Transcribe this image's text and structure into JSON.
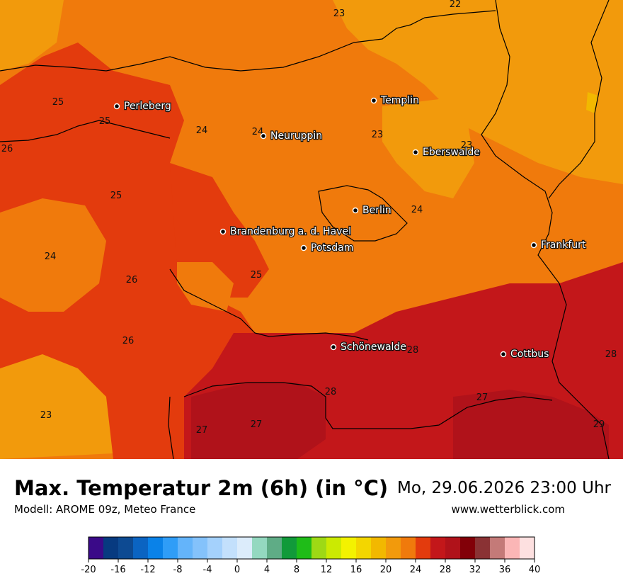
{
  "title": "Max. Temperatur 2m (6h) (in °C)",
  "subtitle": "Modell: AROME 09z, Meteo France",
  "datetime": "Mo, 29.06.2026 23:00 Uhr",
  "website": "www.wetterblick.com",
  "cities": [
    {
      "name": "Perleberg"
    },
    {
      "name": "Templin"
    },
    {
      "name": "Neuruppin"
    },
    {
      "name": "Eberswalde"
    },
    {
      "name": "Berlin"
    },
    {
      "name": "Brandenburg a. d. Havel"
    },
    {
      "name": "Potsdam"
    },
    {
      "name": "Frankfurt"
    },
    {
      "name": "Schönewalde"
    },
    {
      "name": "Cottbus"
    }
  ],
  "isoline_labels": [
    "23",
    "22",
    "25",
    "25",
    "26",
    "24",
    "24",
    "23",
    "23",
    "25",
    "24",
    "24",
    "25",
    "26",
    "26",
    "28",
    "28",
    "28",
    "27",
    "27",
    "27",
    "29",
    "23"
  ],
  "colorbar": {
    "ticks": [
      "-20",
      "-16",
      "-12",
      "-8",
      "-4",
      "0",
      "4",
      "8",
      "12",
      "16",
      "20",
      "24",
      "28",
      "32",
      "36",
      "40"
    ],
    "colors": [
      "#3a0a88",
      "#073a80",
      "#0d4a92",
      "#0b64c2",
      "#0a82e8",
      "#2f9df7",
      "#64b4fa",
      "#84c2fb",
      "#a4d1fc",
      "#c3e0fc",
      "#dcecfb",
      "#94d8c0",
      "#5fac86",
      "#119a3a",
      "#1fbc18",
      "#9ed915",
      "#cbea02",
      "#f3f200",
      "#f3d600",
      "#f2b800",
      "#f29a0c",
      "#f07a0c",
      "#e33b0d",
      "#c3171a",
      "#b0121a",
      "#820008",
      "#8a3234",
      "#c47a78",
      "#fbb6b6",
      "#fde0e0"
    ]
  }
}
